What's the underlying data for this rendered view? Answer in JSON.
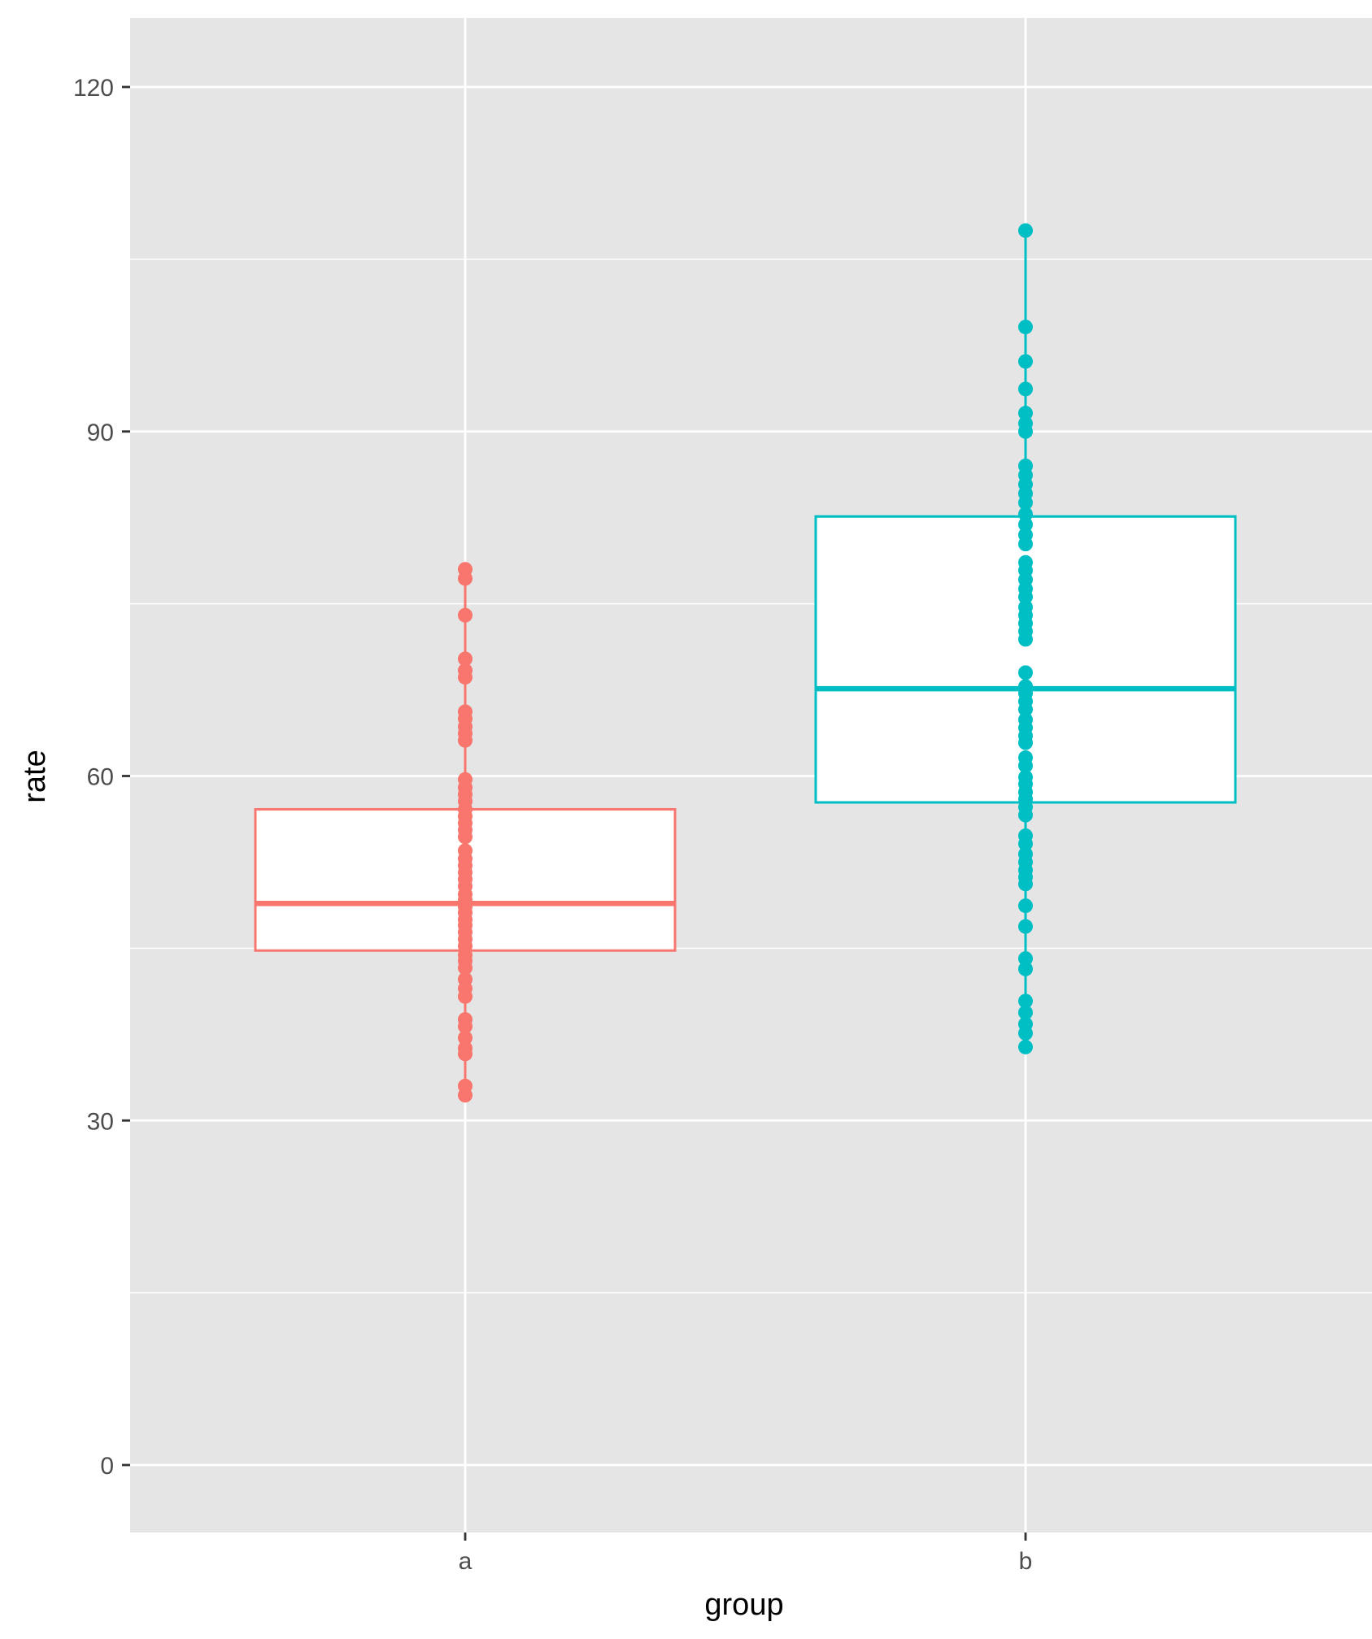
{
  "chart_data": {
    "type": "boxplot",
    "title": "",
    "xlabel": "group",
    "ylabel": "rate",
    "ylim": [
      -6,
      126
    ],
    "y_ticks": [
      0,
      30,
      60,
      90,
      120
    ],
    "y_tick_labels": [
      "0",
      "30",
      "60",
      "90",
      "120"
    ],
    "y_minor_ticks": [
      15,
      45,
      75,
      105
    ],
    "categories": [
      "a",
      "b"
    ],
    "grid": true,
    "legend": "none",
    "background": "#e5e5e5",
    "grid_color": "#ffffff",
    "series": [
      {
        "category": "a",
        "color": "#f8766d",
        "box": {
          "min": 32.2,
          "q1": 44.8,
          "median": 48.9,
          "q3": 57.1,
          "max": 78
        },
        "points": [
          32.2,
          33,
          35.8,
          36.3,
          37.2,
          38.2,
          38.8,
          40.8,
          41.5,
          42.3,
          43.3,
          43.9,
          44.4,
          45.2,
          45.8,
          46.4,
          47,
          47.5,
          48.1,
          48.6,
          49.2,
          49.7,
          50.4,
          51,
          51.6,
          52.2,
          52.8,
          53.5,
          54.7,
          55.3,
          55.9,
          56.5,
          57.1,
          57.8,
          58.4,
          59,
          59.7,
          63.1,
          63.7,
          64.3,
          65,
          65.6,
          68.6,
          69.2,
          70.2,
          74,
          77.2,
          78
        ]
      },
      {
        "category": "b",
        "color": "#00bfc4",
        "box": {
          "min": 36.4,
          "q1": 57.7,
          "median": 67.6,
          "q3": 82.6,
          "max": 107.5
        },
        "points": [
          36.4,
          37.6,
          38.4,
          39.4,
          40.4,
          43.2,
          44.1,
          46.9,
          48.7,
          50.6,
          51.2,
          51.8,
          52.5,
          53.2,
          54.1,
          54.8,
          56.6,
          57.3,
          58,
          58.6,
          59.3,
          59.9,
          60.9,
          61.6,
          62.9,
          63.5,
          64.2,
          64.9,
          65.8,
          66.5,
          67.2,
          67.8,
          69,
          71.9,
          72.6,
          73.3,
          74,
          74.7,
          75.6,
          76.3,
          77.1,
          77.9,
          78.6,
          80.2,
          81,
          81.9,
          82.8,
          83.8,
          84.6,
          85.4,
          86.2,
          87,
          90,
          90.7,
          91.6,
          93.7,
          96.1,
          99.1,
          107.5
        ]
      }
    ]
  }
}
